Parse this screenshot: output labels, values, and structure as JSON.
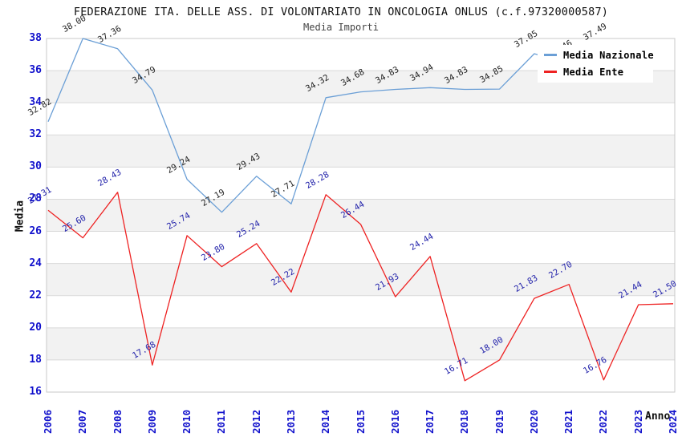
{
  "header": {
    "title": "FEDERAZIONE ITA. DELLE ASS. DI VOLONTARIATO IN ONCOLOGIA ONLUS (c.f.97320000587)",
    "subtitle": "Media Importi"
  },
  "chart_data": {
    "type": "line",
    "title": "FEDERAZIONE ITA. DELLE ASS. DI VOLONTARIATO IN ONCOLOGIA ONLUS (c.f.97320000587)",
    "subtitle": "Media Importi",
    "xlabel": "Anno",
    "ylabel": "Media",
    "ylim": [
      16,
      38
    ],
    "ytick_step": 2,
    "yticks": [
      16,
      18,
      20,
      22,
      24,
      26,
      28,
      30,
      32,
      34,
      36,
      38
    ],
    "grid": "horizontal gridlines with alternating light-gray bands",
    "legend_position": "top-right inside plot, white background, occludes blue line 2021-2024",
    "categories": [
      "2006",
      "2007",
      "2008",
      "2009",
      "2010",
      "2011",
      "2012",
      "2013",
      "2014",
      "2015",
      "2016",
      "2017",
      "2018",
      "2019",
      "2020",
      "2021",
      "2022",
      "2023",
      "2024"
    ],
    "series": [
      {
        "name": "Media Nazionale",
        "color": "#6b9fd6",
        "label_color": "#222222",
        "values": [
          32.82,
          38.0,
          37.36,
          34.79,
          29.24,
          27.19,
          29.43,
          27.71,
          34.32,
          34.68,
          34.83,
          34.94,
          34.83,
          34.85,
          37.05,
          36.46,
          37.49,
          null,
          null
        ],
        "note": "2021 label mostly hidden behind legend; no data shown for 2023-2024"
      },
      {
        "name": "Media Ente",
        "color": "#ee2222",
        "label_color": "#2222aa",
        "values": [
          27.31,
          25.6,
          28.43,
          17.68,
          25.74,
          23.8,
          25.24,
          22.22,
          28.28,
          26.44,
          21.93,
          24.44,
          16.71,
          18.0,
          21.83,
          22.7,
          16.76,
          21.44,
          21.5
        ]
      }
    ],
    "colors": {
      "tick_labels": "#1111cc",
      "gridline": "#d9d9d9",
      "band": "#f2f2f2",
      "plot_border": "#c8c8c8",
      "title": "#111111",
      "subtitle": "#444444"
    }
  }
}
